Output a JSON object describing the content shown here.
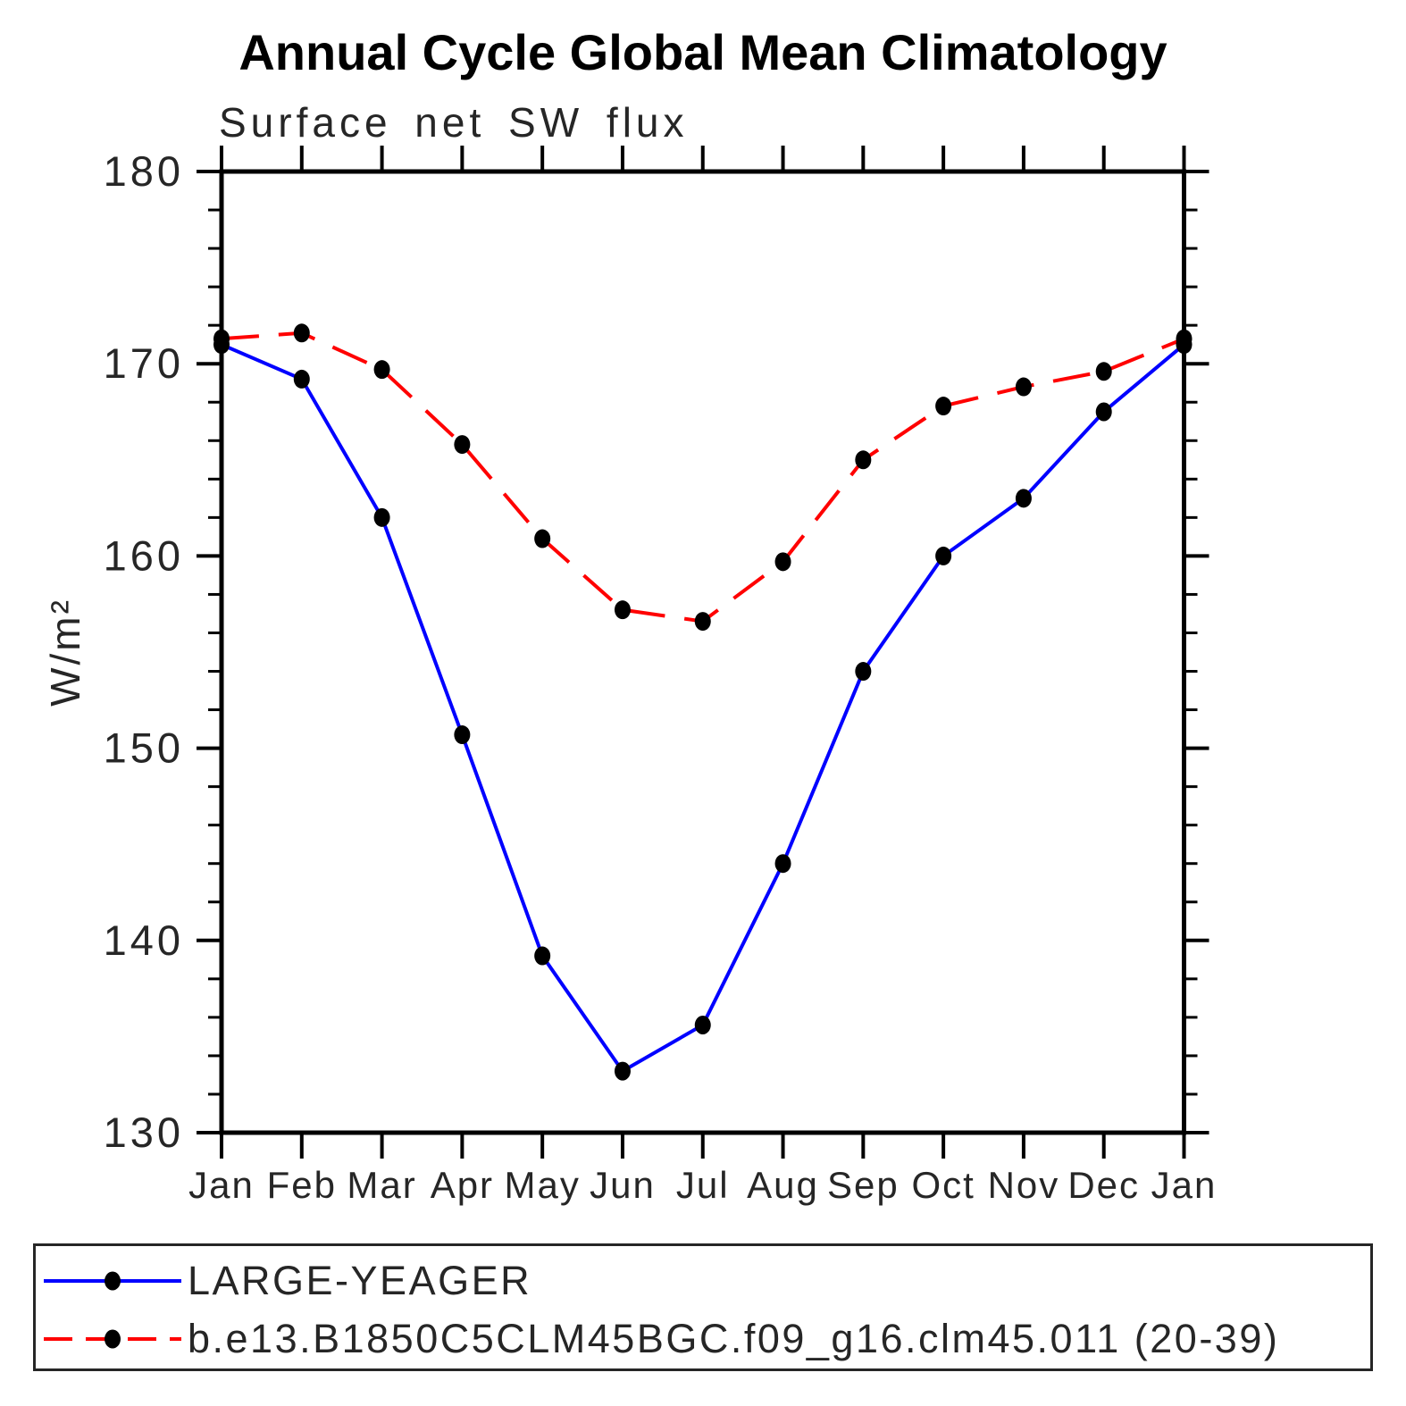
{
  "chart_data": {
    "type": "line",
    "suptitle": "Annual Cycle Global Mean Climatology",
    "title": "Surface net SW flux",
    "xlabel": "",
    "ylabel": "W/m²",
    "categories": [
      "Jan",
      "Feb",
      "Mar",
      "Apr",
      "May",
      "Jun",
      "Jul",
      "Aug",
      "Sep",
      "Oct",
      "Nov",
      "Dec",
      "Jan"
    ],
    "series": [
      {
        "name": "LARGE-YEAGER",
        "color": "#0000ff",
        "line_style": "solid",
        "marker": "filled-circle",
        "marker_color": "#000000",
        "values": [
          171.0,
          169.2,
          162.0,
          150.7,
          139.2,
          133.2,
          135.6,
          144.0,
          154.0,
          160.0,
          163.0,
          167.5,
          171.0
        ]
      },
      {
        "name": "b.e13.B1850C5CLM45BGC.f09_g16.clm45.011 (20-39)",
        "color": "#ff0000",
        "line_style": "dashed",
        "marker": "filled-circle",
        "marker_color": "#000000",
        "values": [
          171.3,
          171.6,
          169.7,
          165.8,
          160.9,
          157.2,
          156.6,
          159.7,
          165.0,
          167.8,
          168.8,
          169.6,
          171.3
        ]
      }
    ],
    "ylim": [
      130,
      180
    ],
    "ytick_labels": [
      "130",
      "140",
      "150",
      "160",
      "170",
      "180"
    ],
    "ytick_major_step": 10,
    "ytick_minor_step": 2,
    "grid": false,
    "legend_position": "bottom-box",
    "axis_color": "#000000"
  }
}
